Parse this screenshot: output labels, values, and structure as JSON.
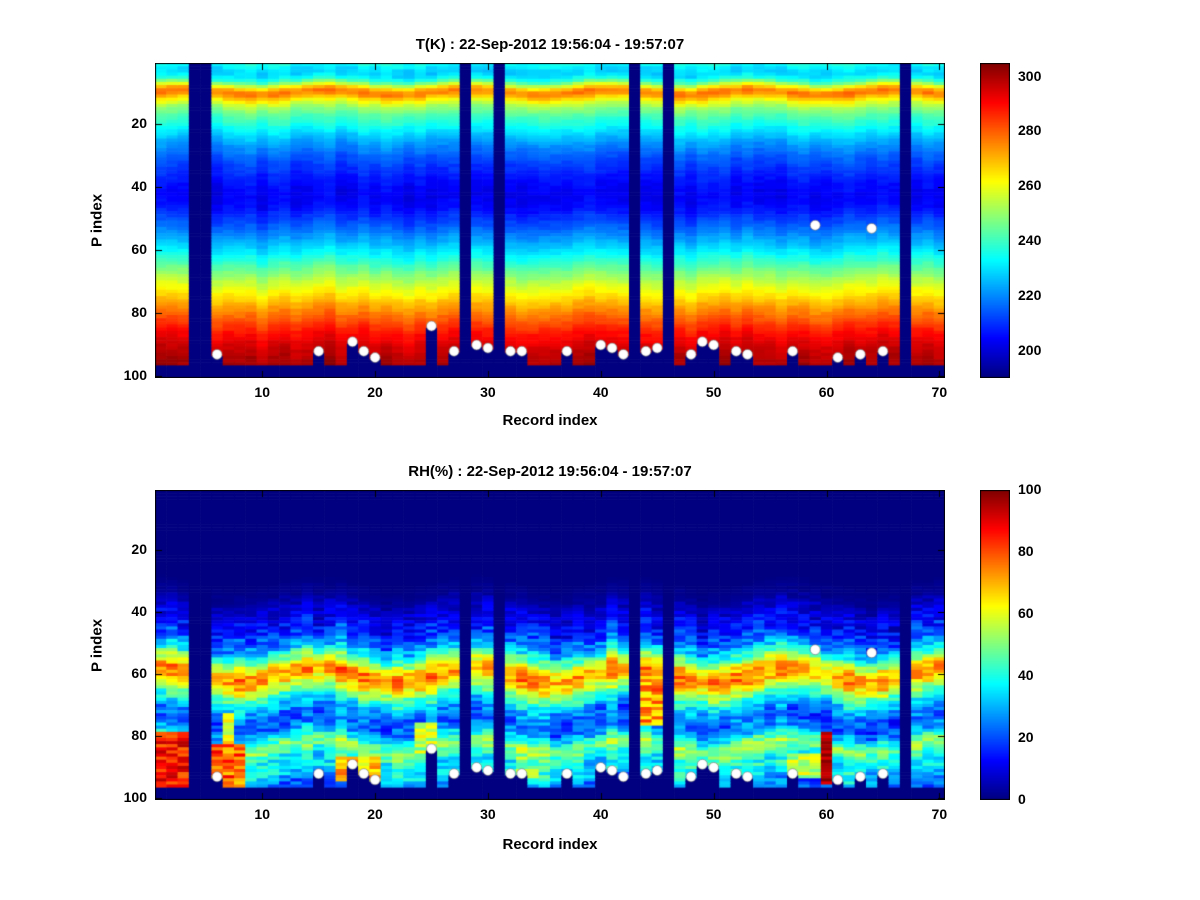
{
  "figure": {
    "background": "#ffffff"
  },
  "chart_data": [
    {
      "type": "heatmap",
      "title": "T(K) : 22-Sep-2012 19:56:04 - 19:57:07",
      "xlabel": "Record index",
      "ylabel": "P index",
      "x_range": [
        1,
        70
      ],
      "y_range": [
        1,
        100
      ],
      "y_axis_reversed": true,
      "x_ticks": [
        10,
        20,
        30,
        40,
        50,
        60,
        70
      ],
      "y_ticks": [
        20,
        40,
        60,
        80,
        100
      ],
      "colormap": "jet",
      "colorbar_range": [
        190,
        305
      ],
      "colorbar_ticks": [
        200,
        220,
        240,
        260,
        280,
        300
      ],
      "value_profile": [
        [
          1,
          235
        ],
        [
          2,
          230
        ],
        [
          4,
          228
        ],
        [
          6,
          238
        ],
        [
          8,
          262
        ],
        [
          9,
          274
        ],
        [
          10,
          278
        ],
        [
          11,
          272
        ],
        [
          13,
          258
        ],
        [
          15,
          249
        ],
        [
          17,
          243
        ],
        [
          20,
          236
        ],
        [
          23,
          229
        ],
        [
          26,
          222
        ],
        [
          30,
          215
        ],
        [
          34,
          210
        ],
        [
          38,
          206
        ],
        [
          42,
          203
        ],
        [
          46,
          205
        ],
        [
          50,
          211
        ],
        [
          54,
          218
        ],
        [
          58,
          226
        ],
        [
          62,
          235
        ],
        [
          66,
          245
        ],
        [
          70,
          255
        ],
        [
          74,
          264
        ],
        [
          78,
          273
        ],
        [
          82,
          281
        ],
        [
          86,
          289
        ],
        [
          90,
          295
        ],
        [
          93,
          298
        ],
        [
          96,
          300
        ]
      ],
      "column_noise_amp": 2.5,
      "cell_noise_amp": 1.6,
      "band_wobble": {
        "amp": 0.8,
        "freq": 0.5,
        "phase": 0
      },
      "noise_seed": 7,
      "missing_columns": [
        4,
        5,
        28,
        31,
        43,
        46,
        67
      ],
      "bottom_missing_from_p": 97,
      "missing_color": "#000080",
      "markers": [
        [
          6,
          93
        ],
        [
          15,
          92
        ],
        [
          18,
          89
        ],
        [
          19,
          92
        ],
        [
          20,
          94
        ],
        [
          25,
          84
        ],
        [
          27,
          92
        ],
        [
          29,
          90
        ],
        [
          30,
          91
        ],
        [
          32,
          92
        ],
        [
          33,
          92
        ],
        [
          37,
          92
        ],
        [
          40,
          90
        ],
        [
          41,
          91
        ],
        [
          42,
          93
        ],
        [
          44,
          92
        ],
        [
          45,
          91
        ],
        [
          48,
          93
        ],
        [
          49,
          89
        ],
        [
          50,
          90
        ],
        [
          52,
          92
        ],
        [
          53,
          93
        ],
        [
          57,
          92
        ],
        [
          59,
          52
        ],
        [
          61,
          94
        ],
        [
          63,
          93
        ],
        [
          64,
          53
        ],
        [
          65,
          92
        ]
      ],
      "marker_style": {
        "color": "#ffffff",
        "radius": 5
      }
    },
    {
      "type": "heatmap",
      "title": "RH(%) : 22-Sep-2012 19:56:04 - 19:57:07",
      "xlabel": "Record index",
      "ylabel": "P index",
      "x_range": [
        1,
        70
      ],
      "y_range": [
        1,
        100
      ],
      "y_axis_reversed": true,
      "x_ticks": [
        10,
        20,
        30,
        40,
        50,
        60,
        70
      ],
      "y_ticks": [
        20,
        40,
        60,
        80,
        100
      ],
      "colormap": "jet",
      "colorbar_range": [
        0,
        100
      ],
      "colorbar_ticks": [
        0,
        20,
        40,
        60,
        80,
        100
      ],
      "value_profile": [
        [
          1,
          0
        ],
        [
          30,
          0
        ],
        [
          35,
          2
        ],
        [
          37,
          5
        ],
        [
          40,
          9
        ],
        [
          43,
          12
        ],
        [
          46,
          16
        ],
        [
          49,
          22
        ],
        [
          52,
          32
        ],
        [
          55,
          48
        ],
        [
          57,
          62
        ],
        [
          59,
          72
        ],
        [
          61,
          74
        ],
        [
          63,
          66
        ],
        [
          65,
          55
        ],
        [
          67,
          44
        ],
        [
          69,
          36
        ],
        [
          71,
          29
        ],
        [
          73,
          24
        ],
        [
          75,
          21
        ],
        [
          77,
          23
        ],
        [
          79,
          30
        ],
        [
          81,
          42
        ],
        [
          83,
          52
        ],
        [
          85,
          48
        ],
        [
          87,
          40
        ],
        [
          89,
          35
        ],
        [
          91,
          38
        ],
        [
          93,
          34
        ],
        [
          95,
          26
        ],
        [
          96,
          22
        ]
      ],
      "column_noise_amp": 5,
      "cell_noise_amp": 8,
      "noise_fade_below": 15,
      "band_wobble": {
        "amp": 2.5,
        "freq": 0.45,
        "phase": 1.2
      },
      "noise_seed": 11,
      "hot_patches": [
        {
          "x0": 1,
          "x1": 3,
          "y0": 79,
          "y1": 96,
          "value": 86,
          "noise": 10
        },
        {
          "x0": 2,
          "x1": 2,
          "y0": 83,
          "y1": 96,
          "value": 97,
          "noise": 4
        },
        {
          "x0": 6,
          "x1": 8,
          "y0": 83,
          "y1": 96,
          "value": 78,
          "noise": 12
        },
        {
          "x0": 7,
          "x1": 7,
          "y0": 73,
          "y1": 82,
          "value": 60,
          "noise": 10
        },
        {
          "x0": 17,
          "x1": 20,
          "y0": 87,
          "y1": 94,
          "value": 68,
          "noise": 10
        },
        {
          "x0": 24,
          "x1": 25,
          "y0": 76,
          "y1": 86,
          "value": 55,
          "noise": 10
        },
        {
          "x0": 33,
          "x1": 34,
          "y0": 87,
          "y1": 93,
          "value": 50,
          "noise": 10
        },
        {
          "x0": 44,
          "x1": 45,
          "y0": 62,
          "y1": 76,
          "value": 72,
          "noise": 12
        },
        {
          "x0": 57,
          "x1": 59,
          "y0": 86,
          "y1": 93,
          "value": 55,
          "noise": 10
        },
        {
          "x0": 60,
          "x1": 60,
          "y0": 79,
          "y1": 95,
          "value": 95,
          "noise": 5
        }
      ],
      "missing_columns": [
        4,
        5,
        28,
        31,
        43,
        46,
        67
      ],
      "bottom_missing_from_p": 97,
      "missing_color": "#000080",
      "markers": [
        [
          6,
          93
        ],
        [
          15,
          92
        ],
        [
          18,
          89
        ],
        [
          19,
          92
        ],
        [
          20,
          94
        ],
        [
          25,
          84
        ],
        [
          27,
          92
        ],
        [
          29,
          90
        ],
        [
          30,
          91
        ],
        [
          32,
          92
        ],
        [
          33,
          92
        ],
        [
          37,
          92
        ],
        [
          40,
          90
        ],
        [
          41,
          91
        ],
        [
          42,
          93
        ],
        [
          44,
          92
        ],
        [
          45,
          91
        ],
        [
          48,
          93
        ],
        [
          49,
          89
        ],
        [
          50,
          90
        ],
        [
          52,
          92
        ],
        [
          53,
          93
        ],
        [
          57,
          92
        ],
        [
          59,
          52
        ],
        [
          61,
          94
        ],
        [
          63,
          93
        ],
        [
          64,
          53
        ],
        [
          65,
          92
        ]
      ],
      "marker_style": {
        "color": "#ffffff",
        "radius": 5
      }
    }
  ]
}
